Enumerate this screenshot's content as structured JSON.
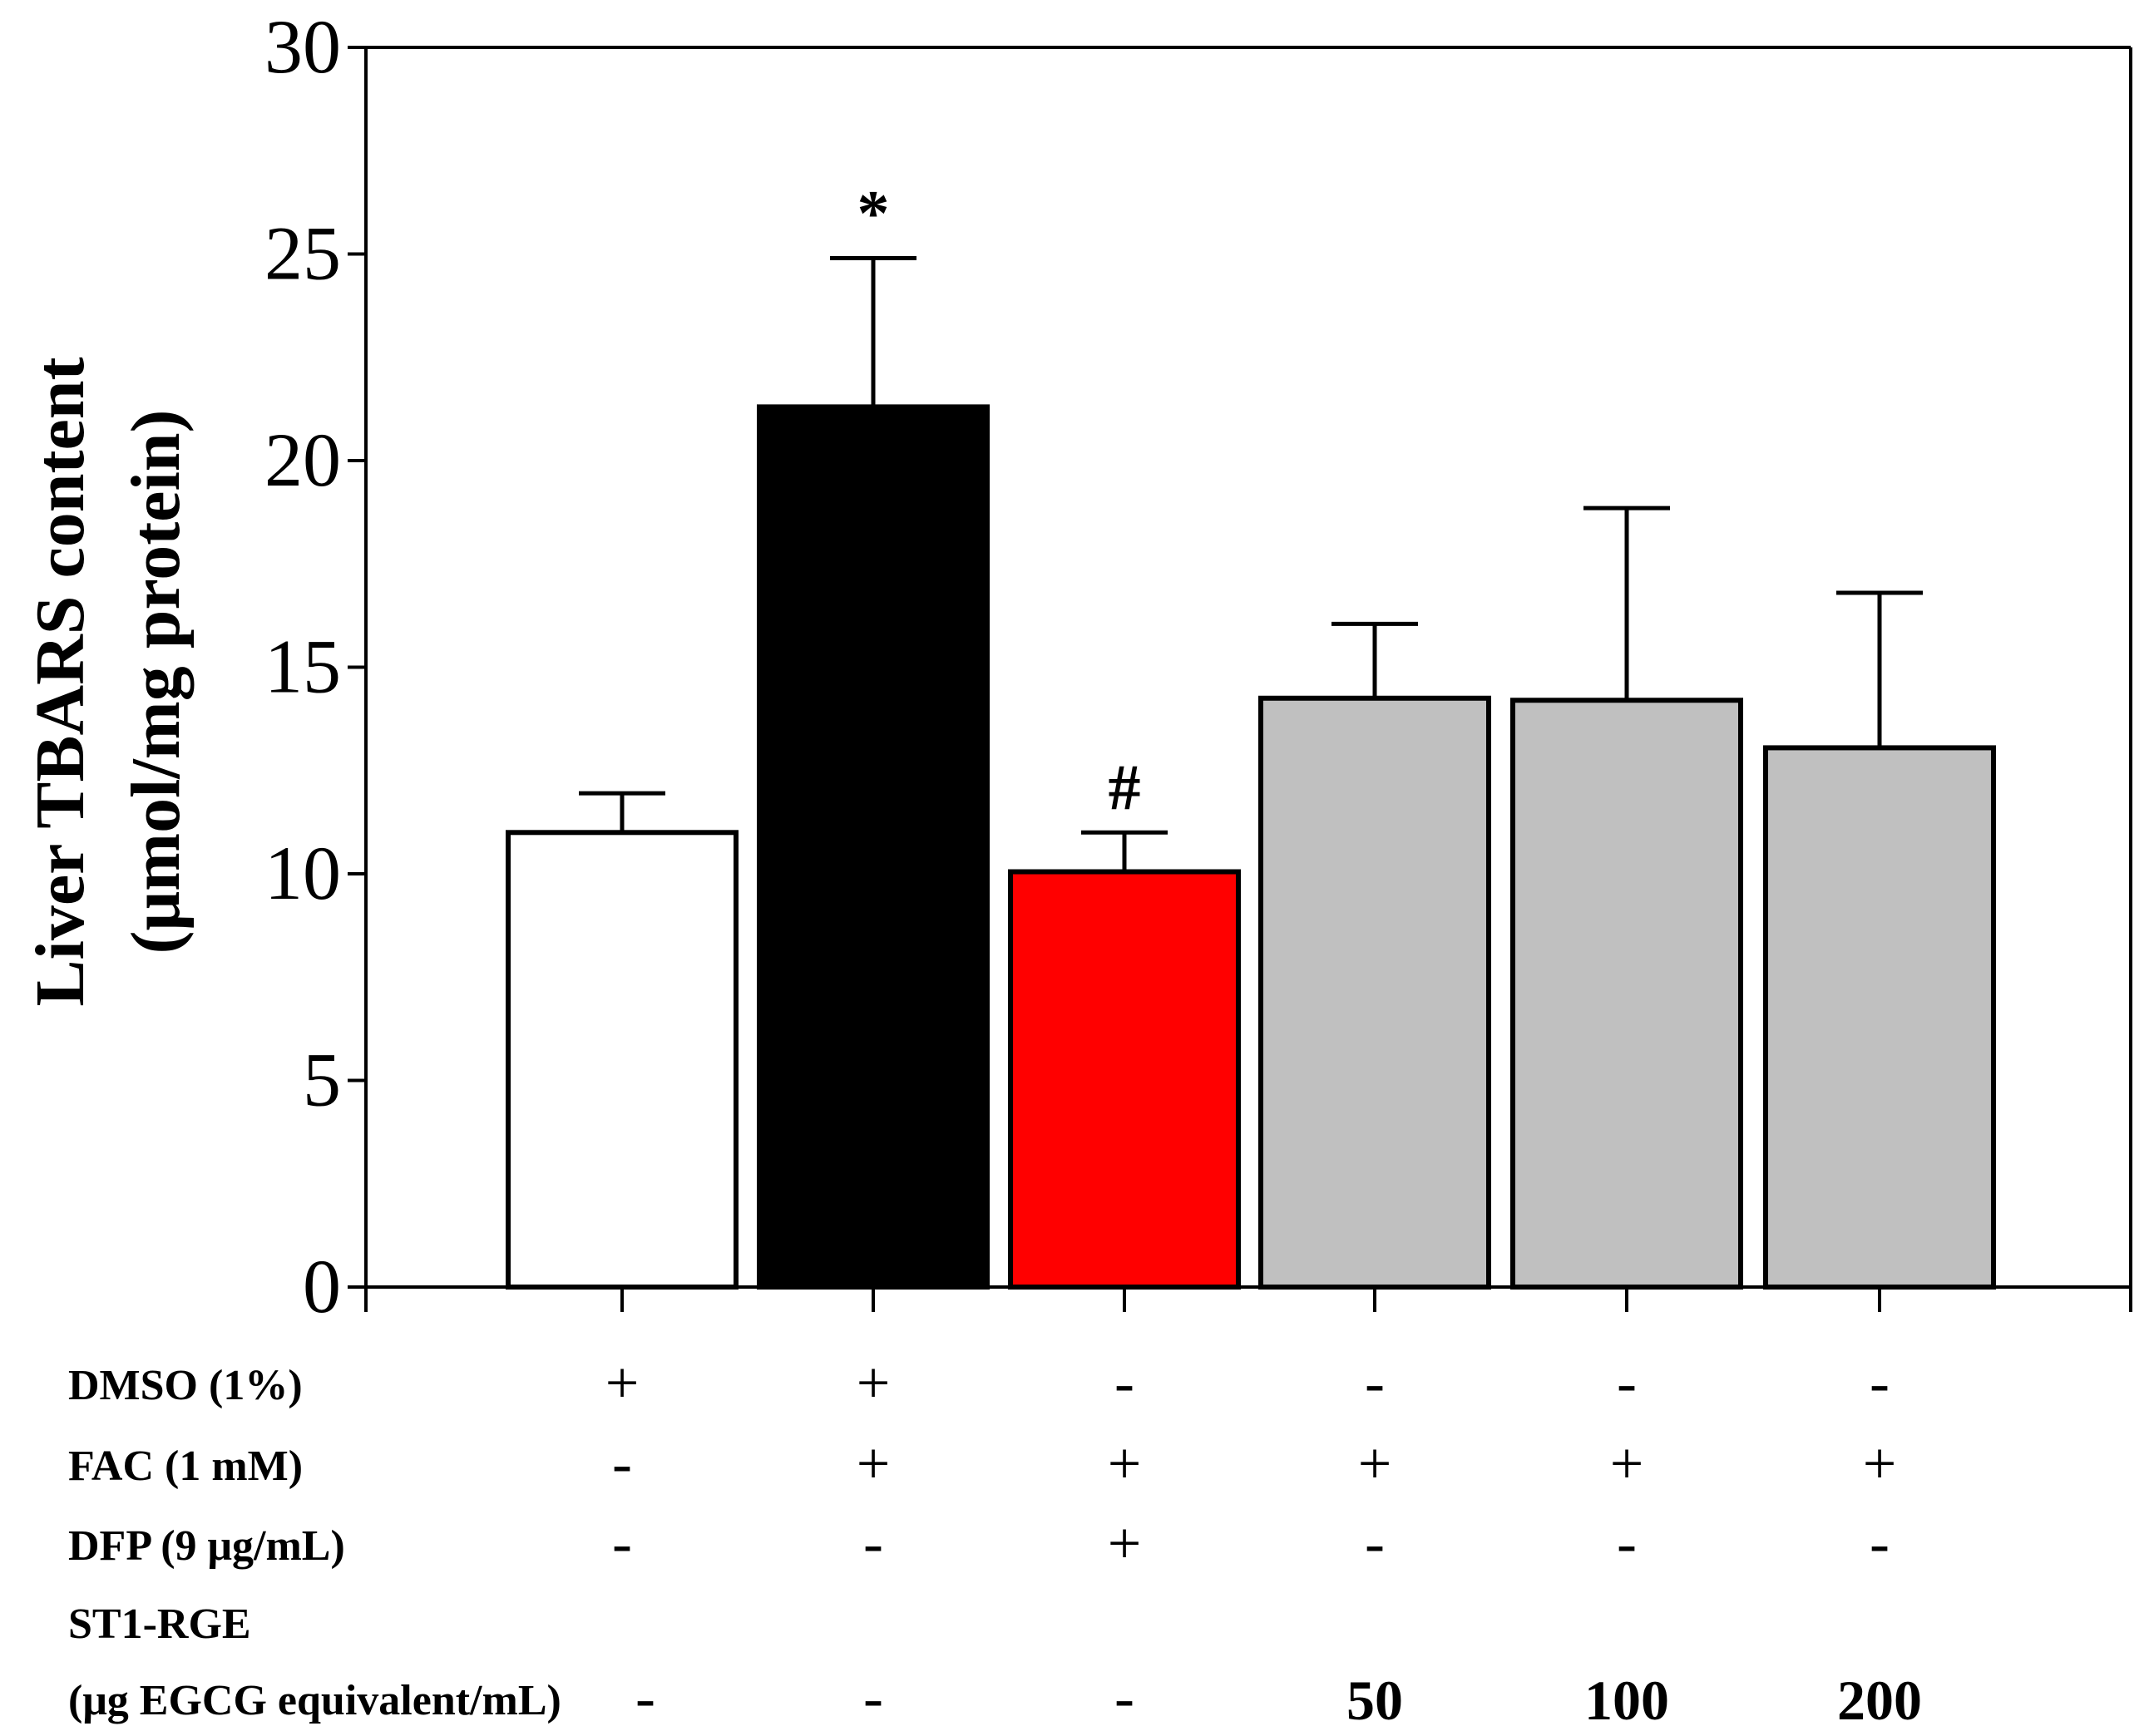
{
  "chart_data": {
    "type": "bar",
    "ylabel_line1": "Liver TBARS content",
    "ylabel_line2": "(μmol/mg protein)",
    "ylim": [
      0,
      30
    ],
    "yticks": [
      0,
      5,
      10,
      15,
      20,
      25,
      30
    ],
    "grid": false,
    "legend": "none",
    "bars": [
      {
        "value": 11.0,
        "error": 0.95,
        "color": "#ffffff",
        "annotation": ""
      },
      {
        "value": 21.3,
        "error": 3.6,
        "color": "#000000",
        "annotation": "*"
      },
      {
        "value": 10.05,
        "error": 0.95,
        "color": "#ff0000",
        "annotation": "#"
      },
      {
        "value": 14.25,
        "error": 1.8,
        "color": "#c0c0c0",
        "annotation": ""
      },
      {
        "value": 14.2,
        "error": 4.65,
        "color": "#c0c0c0",
        "annotation": ""
      },
      {
        "value": 13.05,
        "error": 3.75,
        "color": "#c0c0c0",
        "annotation": ""
      }
    ]
  },
  "treatment_table": {
    "rows": [
      {
        "label": "DMSO (1%)",
        "cells": [
          "+",
          "+",
          "-",
          "-",
          "-",
          "-"
        ],
        "bold": false
      },
      {
        "label": "FAC (1 mM)",
        "cells": [
          "-",
          "+",
          "+",
          "+",
          "+",
          "+"
        ],
        "bold": false
      },
      {
        "label": "DFP (9 μg/mL)",
        "cells": [
          "-",
          "-",
          "+",
          "-",
          "-",
          "-"
        ],
        "bold": false
      },
      {
        "label": "ST1-RGE",
        "cells": [],
        "bold": false
      },
      {
        "label": "(μg EGCG equivalent/mL)",
        "cells": [
          "-",
          "-",
          "-",
          "50",
          "100",
          "200"
        ],
        "bold": true
      }
    ]
  }
}
